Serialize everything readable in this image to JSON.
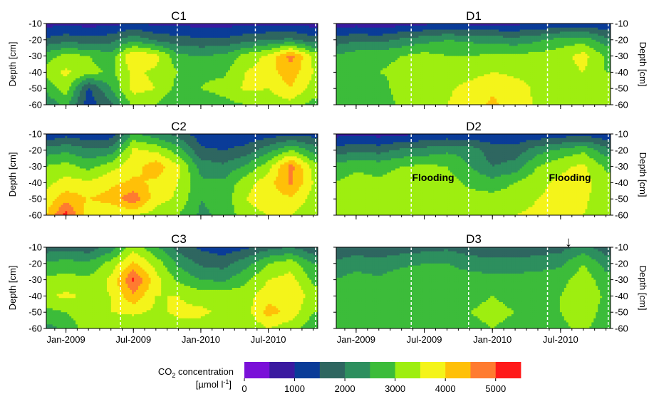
{
  "figure": {
    "y_axis_label": "Depth [cm]",
    "x_tick_labels": [
      "Jan-2009",
      "Jul-2009",
      "Jan-2010",
      "Jul-2010"
    ],
    "y_tick_labels": [
      "-10",
      "-20",
      "-30",
      "-40",
      "-50",
      "-60"
    ],
    "colorbar": {
      "label_line1_prefix": "CO",
      "label_line1_sub": "2",
      "label_line1_suffix": " concentration",
      "label_line2_prefix": "[µmol l",
      "label_line2_sup": "-1",
      "label_line2_suffix": "]",
      "tick_labels": [
        "0",
        "1000",
        "2000",
        "3000",
        "4000",
        "5000"
      ],
      "levels": [
        0,
        500,
        1000,
        1500,
        2000,
        2500,
        3000,
        3500,
        4000,
        4500,
        5000,
        5500
      ],
      "colors": [
        "#7a10d8",
        "#3a1aa0",
        "#0a3c98",
        "#2e6660",
        "#2d8f5e",
        "#3cbc3a",
        "#9eee10",
        "#f4f41a",
        "#ffc008",
        "#ff7b30",
        "#ff1a1a"
      ]
    },
    "annotations": {
      "flooding_label": "Flooding",
      "arrow_glyph": "↓"
    }
  },
  "chart_data": [
    {
      "type": "heatmap",
      "title": "C1",
      "ylabel": "Depth [cm]",
      "ylim": [
        -60,
        -10
      ],
      "x": [
        "2008-11",
        "2009-01",
        "2009-03",
        "2009-05",
        "2009-07",
        "2009-09",
        "2009-11",
        "2010-01",
        "2010-03",
        "2010-05",
        "2010-07",
        "2010-09",
        "2010-11"
      ],
      "depth": [
        -10,
        -20,
        -30,
        -40,
        -50,
        -60
      ],
      "values": [
        [
          800,
          900,
          800,
          900,
          1000,
          900,
          900,
          800,
          800,
          900,
          900,
          900,
          800
        ],
        [
          1600,
          1800,
          1700,
          1800,
          2400,
          1900,
          1700,
          1600,
          1600,
          1800,
          2000,
          2100,
          1700
        ],
        [
          2700,
          3200,
          3000,
          2700,
          4000,
          3700,
          2600,
          2500,
          2600,
          3200,
          3600,
          4700,
          3400
        ],
        [
          3200,
          3600,
          3200,
          2900,
          3600,
          3400,
          3000,
          2900,
          2900,
          3500,
          3800,
          4300,
          3500
        ],
        [
          2500,
          3300,
          1400,
          2500,
          3700,
          3500,
          2800,
          3000,
          3200,
          3600,
          3500,
          4000,
          3300
        ],
        [
          2100,
          2600,
          1200,
          1900,
          3100,
          3000,
          2500,
          2600,
          2800,
          3000,
          3200,
          3300,
          2800
        ]
      ]
    },
    {
      "type": "heatmap",
      "title": "C2",
      "ylabel": "Depth [cm]",
      "ylim": [
        -60,
        -10
      ],
      "x": [
        "2008-11",
        "2009-01",
        "2009-03",
        "2009-05",
        "2009-07",
        "2009-09",
        "2009-11",
        "2010-01",
        "2010-03",
        "2010-05",
        "2010-07",
        "2010-09",
        "2010-11"
      ],
      "depth": [
        -10,
        -20,
        -30,
        -40,
        -50,
        -60
      ],
      "values": [
        [
          1000,
          1300,
          1100,
          1200,
          2600,
          2200,
          1800,
          1200,
          1000,
          1100,
          1200,
          1400,
          1300
        ],
        [
          2200,
          2400,
          2100,
          2200,
          3600,
          3400,
          2700,
          1600,
          1500,
          1700,
          2300,
          3000,
          2300
        ],
        [
          3000,
          3200,
          2800,
          3300,
          3800,
          4300,
          3600,
          2300,
          2100,
          2600,
          3300,
          4700,
          3300
        ],
        [
          3300,
          3700,
          3600,
          3900,
          4100,
          3900,
          3500,
          2600,
          2600,
          3300,
          3800,
          4600,
          3500
        ],
        [
          3600,
          4300,
          4000,
          4200,
          4900,
          3700,
          3400,
          2500,
          2700,
          3500,
          3800,
          3900,
          3300
        ],
        [
          3800,
          5200,
          3600,
          3500,
          3500,
          3300,
          3000,
          2400,
          2600,
          3300,
          3500,
          3500,
          3200
        ]
      ]
    },
    {
      "type": "heatmap",
      "title": "C3",
      "ylabel": "Depth [cm]",
      "ylim": [
        -60,
        -10
      ],
      "x": [
        "2008-11",
        "2009-01",
        "2009-03",
        "2009-05",
        "2009-07",
        "2009-09",
        "2009-11",
        "2010-01",
        "2010-03",
        "2010-05",
        "2010-07",
        "2010-09",
        "2010-11"
      ],
      "depth": [
        -10,
        -20,
        -30,
        -40,
        -50,
        -60
      ],
      "values": [
        [
          1700,
          1800,
          1700,
          2200,
          3300,
          2600,
          1800,
          1400,
          1200,
          1400,
          1800,
          2000,
          1600
        ],
        [
          2600,
          2700,
          2600,
          3200,
          4100,
          3300,
          2400,
          1900,
          1800,
          2300,
          3000,
          3300,
          2500
        ],
        [
          3100,
          3200,
          3100,
          3600,
          5100,
          3700,
          2900,
          2500,
          2400,
          2900,
          3500,
          3700,
          2900
        ],
        [
          3400,
          3600,
          3400,
          3500,
          4400,
          3500,
          3500,
          3300,
          3300,
          3300,
          3800,
          4000,
          3200
        ],
        [
          2800,
          3000,
          3400,
          3500,
          3600,
          3400,
          3600,
          3600,
          3400,
          3300,
          4200,
          3800,
          3000
        ],
        [
          2300,
          2600,
          3300,
          3000,
          3100,
          3000,
          3300,
          3300,
          3100,
          3000,
          3500,
          3200,
          2700
        ]
      ]
    },
    {
      "type": "heatmap",
      "title": "D1",
      "ylabel": "Depth [cm]",
      "ylim": [
        -60,
        -10
      ],
      "x": [
        "2008-11",
        "2009-01",
        "2009-03",
        "2009-05",
        "2009-07",
        "2009-09",
        "2009-11",
        "2010-01",
        "2010-03",
        "2010-05",
        "2010-07",
        "2010-09",
        "2010-11"
      ],
      "depth": [
        -10,
        -20,
        -30,
        -40,
        -50,
        -60
      ],
      "values": [
        [
          700,
          800,
          700,
          800,
          900,
          1000,
          900,
          900,
          900,
          1000,
          1100,
          1200,
          1000
        ],
        [
          1700,
          1900,
          1800,
          2100,
          2300,
          2500,
          2400,
          2300,
          2200,
          2400,
          2700,
          2800,
          2200
        ],
        [
          2500,
          2800,
          2900,
          3000,
          3200,
          3000,
          3000,
          3100,
          3100,
          3200,
          3300,
          3700,
          2900
        ],
        [
          2600,
          2900,
          3000,
          3100,
          3300,
          3200,
          3300,
          3500,
          3400,
          3400,
          3300,
          3500,
          3000
        ],
        [
          2700,
          2900,
          2800,
          3200,
          3200,
          3400,
          3700,
          3900,
          3700,
          3400,
          3300,
          3400,
          3000
        ],
        [
          2700,
          2800,
          2700,
          3100,
          3200,
          3500,
          3800,
          4100,
          3800,
          3400,
          3200,
          3300,
          3000
        ]
      ]
    },
    {
      "type": "heatmap",
      "title": "D2",
      "ylabel": "Depth [cm]",
      "ylim": [
        -60,
        -10
      ],
      "x": [
        "2008-11",
        "2009-01",
        "2009-03",
        "2009-05",
        "2009-07",
        "2009-09",
        "2009-11",
        "2010-01",
        "2010-03",
        "2010-05",
        "2010-07",
        "2010-09",
        "2010-11"
      ],
      "depth": [
        -10,
        -20,
        -30,
        -40,
        -50,
        -60
      ],
      "values": [
        [
          800,
          900,
          800,
          900,
          1000,
          1100,
          1000,
          1200,
          1100,
          1100,
          1200,
          1300,
          1100
        ],
        [
          1700,
          1900,
          1800,
          2100,
          2200,
          2400,
          2300,
          1700,
          1700,
          2300,
          2600,
          2900,
          2200
        ],
        [
          2700,
          2900,
          2800,
          3000,
          3100,
          3000,
          2500,
          2000,
          2200,
          3000,
          3400,
          3600,
          2900
        ],
        [
          3000,
          3200,
          3100,
          3300,
          3300,
          3200,
          2900,
          2700,
          3000,
          3400,
          3600,
          3700,
          3200
        ],
        [
          3000,
          3300,
          3300,
          3400,
          3500,
          3300,
          3200,
          3200,
          3300,
          3500,
          3600,
          3600,
          3200
        ],
        [
          3100,
          3400,
          3400,
          3500,
          3500,
          3400,
          3300,
          3400,
          3500,
          3600,
          3600,
          3500,
          3300
        ]
      ]
    },
    {
      "type": "heatmap",
      "title": "D3",
      "ylabel": "Depth [cm]",
      "ylim": [
        -60,
        -10
      ],
      "x": [
        "2008-11",
        "2009-01",
        "2009-03",
        "2009-05",
        "2009-07",
        "2009-09",
        "2009-11",
        "2010-01",
        "2010-03",
        "2010-05",
        "2010-07",
        "2010-09",
        "2010-11"
      ],
      "depth": [
        -10,
        -20,
        -30,
        -40,
        -50,
        -60
      ],
      "values": [
        [
          1500,
          1700,
          1600,
          1700,
          1800,
          1900,
          1700,
          1600,
          1600,
          1700,
          1800,
          2200,
          1700
        ],
        [
          2100,
          2300,
          2200,
          2400,
          2500,
          2500,
          2300,
          2200,
          2200,
          2300,
          2400,
          3000,
          2300
        ],
        [
          2500,
          2700,
          2600,
          2800,
          2800,
          2800,
          2700,
          2700,
          2700,
          2700,
          2800,
          3300,
          2700
        ],
        [
          2700,
          2900,
          2800,
          2900,
          2900,
          2900,
          2900,
          3000,
          2900,
          2900,
          3000,
          3400,
          2900
        ],
        [
          2600,
          2800,
          2800,
          2900,
          2800,
          2900,
          3000,
          3100,
          3000,
          2900,
          3000,
          3300,
          2800
        ],
        [
          2500,
          2700,
          2700,
          2700,
          2800,
          2800,
          2900,
          3000,
          2900,
          2800,
          2900,
          3100,
          2700
        ]
      ]
    }
  ]
}
